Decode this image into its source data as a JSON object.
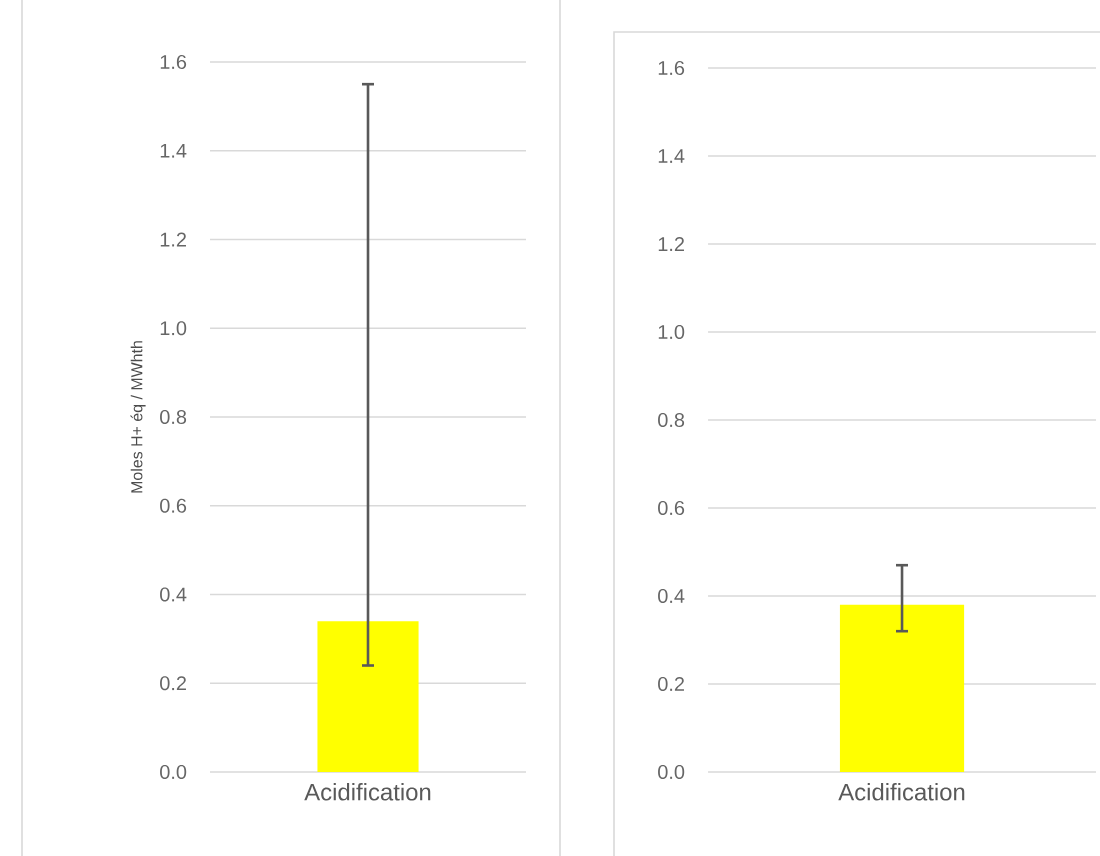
{
  "chart_data": [
    {
      "type": "bar",
      "ylabel": "Moles H+ éq / MWhth",
      "categories": [
        "Acidification"
      ],
      "values": [
        0.34
      ],
      "errors": [
        [
          0.24,
          1.55
        ]
      ],
      "color": "#ffff00",
      "ylim": [
        0,
        1.6
      ],
      "yticks": [
        {
          "value": 0,
          "label": "0.0"
        },
        {
          "value": 0.2,
          "label": "0.2"
        },
        {
          "value": 0.4,
          "label": "0.4"
        },
        {
          "value": 0.6,
          "label": "0.6"
        },
        {
          "value": 0.8,
          "label": "0.8"
        },
        {
          "value": 1,
          "label": "1.0"
        },
        {
          "value": 1.2,
          "label": "1.2"
        },
        {
          "value": 1.4,
          "label": "1.4"
        },
        {
          "value": 1.6,
          "label": "1.6"
        }
      ],
      "grid": "y"
    },
    {
      "type": "bar",
      "categories": [
        "Acidification"
      ],
      "values": [
        0.38
      ],
      "errors": [
        [
          0.32,
          0.47
        ]
      ],
      "color": "#ffff00",
      "ylim": [
        0,
        1.6
      ],
      "yticks": [
        {
          "value": 0,
          "label": "0.0"
        },
        {
          "value": 0.2,
          "label": "0.2"
        },
        {
          "value": 0.4,
          "label": "0.4"
        },
        {
          "value": 0.6,
          "label": "0.6"
        },
        {
          "value": 0.8,
          "label": "0.8"
        },
        {
          "value": 1,
          "label": "1.0"
        },
        {
          "value": 1.2,
          "label": "1.2"
        },
        {
          "value": 1.4,
          "label": "1.4"
        },
        {
          "value": 1.6,
          "label": "1.6"
        }
      ],
      "grid": "y"
    }
  ]
}
